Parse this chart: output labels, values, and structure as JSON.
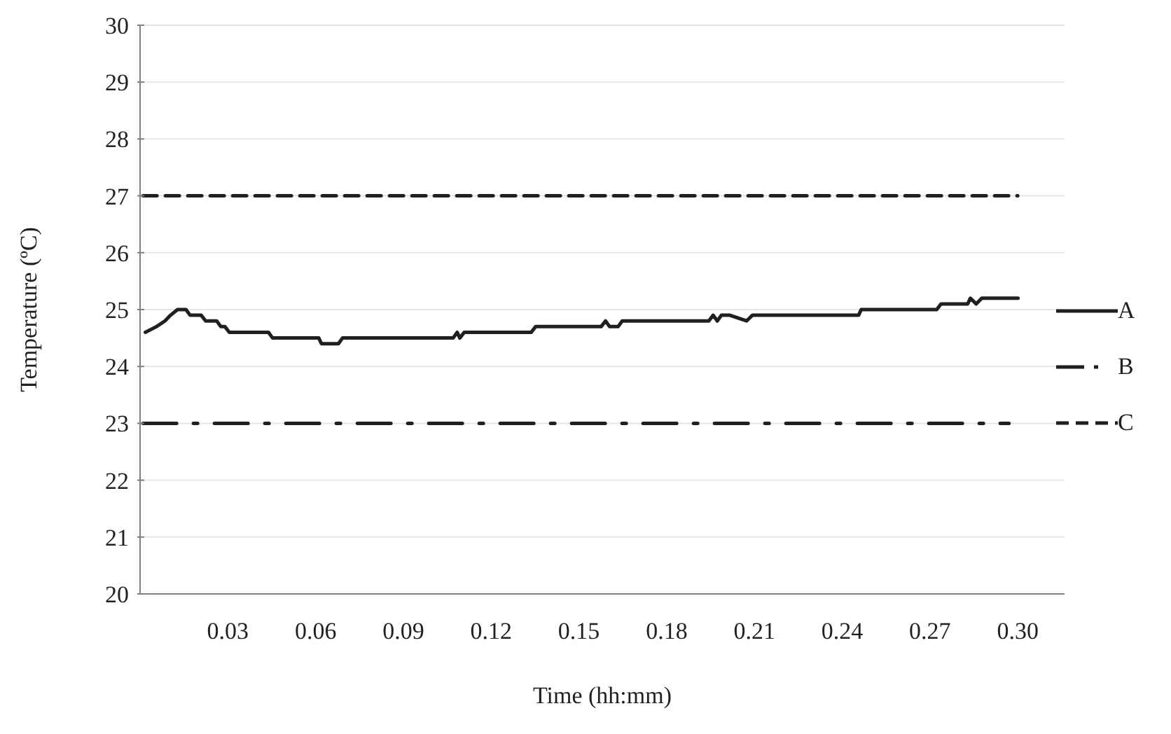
{
  "chart_data": {
    "type": "line",
    "xlabel": "Time (hh:mm)",
    "ylabel": "Temperature (ºC)",
    "xlim": [
      0,
      0.316
    ],
    "ylim": [
      20,
      30
    ],
    "xticks": [
      0.03,
      0.06,
      0.09,
      0.12,
      0.15,
      0.18,
      0.21,
      0.24,
      0.27,
      {
        "value": 0.3,
        "label": "0.30"
      }
    ],
    "yticks": [
      20,
      21,
      22,
      23,
      24,
      25,
      26,
      27,
      28,
      29,
      30
    ],
    "grid": "y",
    "legend": "right",
    "marker": "none",
    "series": [
      {
        "name": "A",
        "color": "#231f20",
        "line_style": "solid",
        "x": [
          0.0018,
          0.0056,
          0.0085,
          0.0104,
          0.0128,
          0.0157,
          0.0171,
          0.0209,
          0.0224,
          0.0262,
          0.0276,
          0.029,
          0.0305,
          0.0439,
          0.0453,
          0.0611,
          0.062,
          0.0678,
          0.0692,
          0.107,
          0.1084,
          0.1093,
          0.1108,
          0.1337,
          0.1352,
          0.1576,
          0.1591,
          0.1605,
          0.1634,
          0.1648,
          0.1944,
          0.1959,
          0.1973,
          0.1987,
          0.2016,
          0.2073,
          0.2093,
          0.2456,
          0.2465,
          0.2723,
          0.2738,
          0.2829,
          0.2838,
          0.2858,
          0.2877,
          0.3001
        ],
        "values": [
          24.6,
          24.7,
          24.8,
          24.9,
          25.0,
          25.0,
          24.9,
          24.9,
          24.8,
          24.8,
          24.7,
          24.7,
          24.6,
          24.6,
          24.5,
          24.5,
          24.4,
          24.4,
          24.5,
          24.5,
          24.6,
          24.5,
          24.6,
          24.6,
          24.7,
          24.7,
          24.8,
          24.7,
          24.7,
          24.8,
          24.8,
          24.9,
          24.8,
          24.9,
          24.9,
          24.8,
          24.9,
          24.9,
          25.0,
          25.0,
          25.1,
          25.1,
          25.2,
          25.1,
          25.2,
          25.2
        ]
      },
      {
        "name": "B",
        "color": "#231f20",
        "line_style": "dashdot",
        "x": [
          0.001,
          0.297
        ],
        "values": [
          23,
          23
        ]
      },
      {
        "name": "C",
        "color": "#231f20",
        "line_style": "dashed",
        "x": [
          0.001,
          0.3
        ],
        "values": [
          27,
          27
        ]
      }
    ]
  }
}
